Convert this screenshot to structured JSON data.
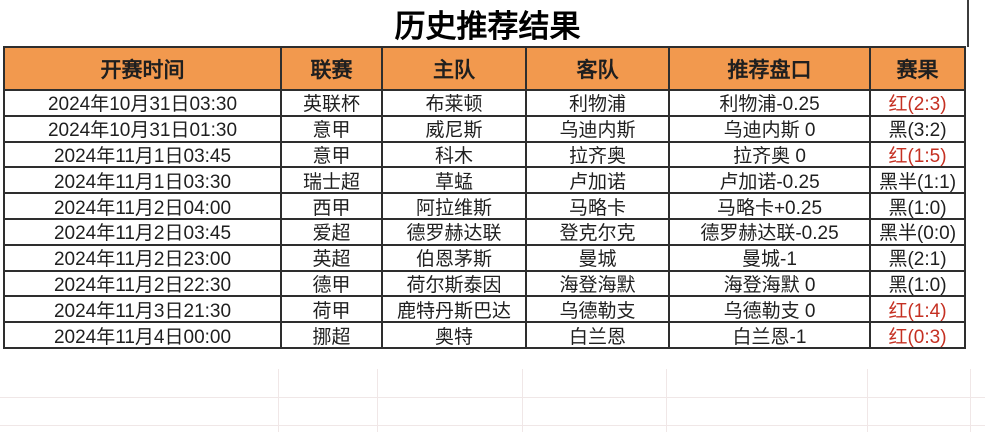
{
  "title": "历史推荐结果",
  "colors": {
    "header_bg": "#F2994E",
    "result_red": "#C53022",
    "result_black": "#1F1F1F",
    "border": "#2E2E2E",
    "faint_grid": "#F0E7E7"
  },
  "table": {
    "headers": {
      "time": "开赛时间",
      "league": "联赛",
      "home": "主队",
      "away": "客队",
      "handicap": "推荐盘口",
      "result": "赛果"
    },
    "rows": [
      {
        "time": "2024年10月31日03:30",
        "league": "英联杯",
        "home": "布莱顿",
        "away": "利物浦",
        "handicap": "利物浦-0.25",
        "result": "红(2:3)",
        "result_color": "#C53022"
      },
      {
        "time": "2024年10月31日01:30",
        "league": "意甲",
        "home": "威尼斯",
        "away": "乌迪内斯",
        "handicap": "乌迪内斯 0",
        "result": "黑(3:2)",
        "result_color": "#1F1F1F"
      },
      {
        "time": "2024年11月1日03:45",
        "league": "意甲",
        "home": "科木",
        "away": "拉齐奥",
        "handicap": "拉齐奥 0",
        "result": "红(1:5)",
        "result_color": "#C53022"
      },
      {
        "time": "2024年11月1日03:30",
        "league": "瑞士超",
        "home": "草蜢",
        "away": "卢加诺",
        "handicap": "卢加诺-0.25",
        "result": "黑半(1:1)",
        "result_color": "#1F1F1F"
      },
      {
        "time": "2024年11月2日04:00",
        "league": "西甲",
        "home": "阿拉维斯",
        "away": "马略卡",
        "handicap": "马略卡+0.25",
        "result": "黑(1:0)",
        "result_color": "#1F1F1F"
      },
      {
        "time": "2024年11月2日03:45",
        "league": "爱超",
        "home": "德罗赫达联",
        "away": "登克尔克",
        "handicap": "德罗赫达联-0.25",
        "result": "黑半(0:0)",
        "result_color": "#1F1F1F"
      },
      {
        "time": "2024年11月2日23:00",
        "league": "英超",
        "home": "伯恩茅斯",
        "away": "曼城",
        "handicap": "曼城-1",
        "result": "黑(2:1)",
        "result_color": "#1F1F1F"
      },
      {
        "time": "2024年11月2日22:30",
        "league": "德甲",
        "home": "荷尔斯泰因",
        "away": "海登海默",
        "handicap": "海登海默 0",
        "result": "黑(1:0)",
        "result_color": "#1F1F1F"
      },
      {
        "time": "2024年11月3日21:30",
        "league": "荷甲",
        "home": "鹿特丹斯巴达",
        "away": "乌德勒支",
        "handicap": "乌德勒支 0",
        "result": "红(1:4)",
        "result_color": "#C53022"
      },
      {
        "time": "2024年11月4日00:00",
        "league": "挪超",
        "home": "奥特",
        "away": "白兰恩",
        "handicap": "白兰恩-1",
        "result": "红(0:3)",
        "result_color": "#C53022"
      }
    ]
  }
}
